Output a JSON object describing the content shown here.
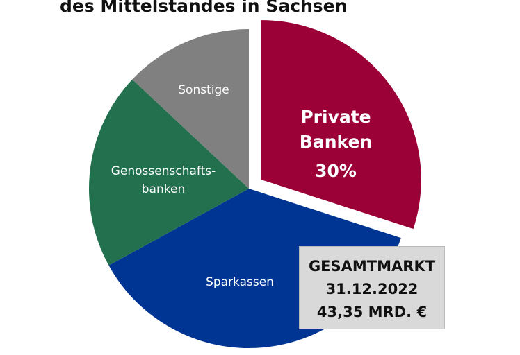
{
  "chart_data": {
    "type": "pie",
    "title": "des Mittelstandes in Sachsen",
    "categories": [
      "Private Banken",
      "Sparkassen",
      "Genossenschafts-banken",
      "Sonstige"
    ],
    "values": [
      30,
      37,
      20,
      13
    ],
    "value_labels": [
      "30%",
      null,
      null,
      null
    ],
    "colors": [
      "#9b0036",
      "#003594",
      "#23704f",
      "#808080"
    ],
    "exploded": [
      true,
      false,
      false,
      false
    ],
    "annotation": [
      "GESAMTMARKT",
      "31.12.2022",
      "43,35 MRD. €"
    ]
  }
}
